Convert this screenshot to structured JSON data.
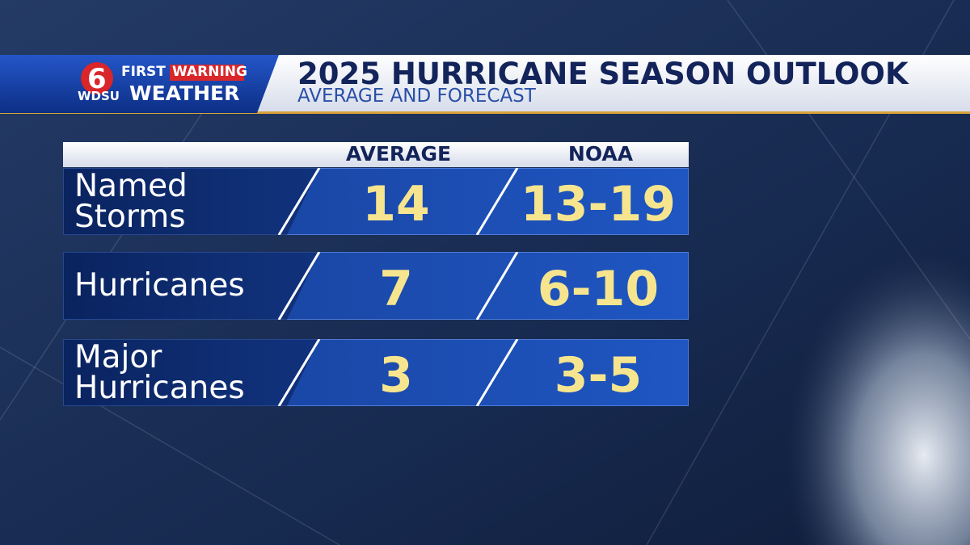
{
  "header": {
    "logo": {
      "number": "6",
      "first": "FIRST",
      "warning": "WARNING",
      "station": "WDSU",
      "weather": "WEATHER"
    },
    "title": "2025 HURRICANE SEASON OUTLOOK",
    "subtitle": "AVERAGE AND FORECAST"
  },
  "table": {
    "columns": [
      "AVERAGE",
      "NOAA"
    ],
    "rows": [
      [
        "Named Storms",
        14,
        "13-19"
      ],
      [
        "Hurricanes",
        7,
        "6-10"
      ],
      [
        "Major Hurricanes",
        3,
        "3-5"
      ]
    ]
  }
}
